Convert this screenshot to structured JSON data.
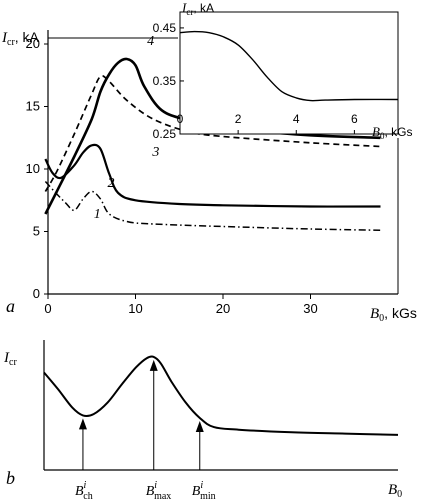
{
  "chart_data": [
    {
      "panel": "a",
      "type": "line",
      "ylabel_var": "I",
      "ylabel_sub": "cr",
      "ylabel_unit": ", kA",
      "xlabel_var": "B",
      "xlabel_sub": "0",
      "xlabel_unit": ", kGs",
      "xlim": [
        0,
        40
      ],
      "ylim": [
        0,
        20
      ],
      "xticks": [
        "0",
        "10",
        "20",
        "30"
      ],
      "yticks": [
        "0",
        "5",
        "10",
        "15",
        "20"
      ],
      "series": [
        {
          "name": "1",
          "style": "dash-dot",
          "points": [
            [
              -0.3,
              9.0
            ],
            [
              1,
              8.0
            ],
            [
              2,
              7.3
            ],
            [
              3,
              6.7
            ],
            [
              4,
              7.6
            ],
            [
              5,
              8.2
            ],
            [
              6,
              7.6
            ],
            [
              7,
              6.4
            ],
            [
              9,
              5.8
            ],
            [
              12,
              5.6
            ],
            [
              20,
              5.4
            ],
            [
              30,
              5.2
            ],
            [
              38,
              5.1
            ]
          ]
        },
        {
          "name": "2",
          "style": "solid",
          "points": [
            [
              -0.3,
              10.8
            ],
            [
              0.5,
              9.7
            ],
            [
              1.5,
              9.3
            ],
            [
              3,
              10.3
            ],
            [
              4,
              11.3
            ],
            [
              5,
              11.9
            ],
            [
              6,
              11.6
            ],
            [
              7,
              9.6
            ],
            [
              8,
              8.1
            ],
            [
              10,
              7.5
            ],
            [
              15,
              7.2
            ],
            [
              20,
              7.1
            ],
            [
              30,
              7.0
            ],
            [
              38,
              7.0
            ]
          ]
        },
        {
          "name": "3",
          "style": "dashed",
          "points": [
            [
              -0.3,
              8.2
            ],
            [
              1,
              9.8
            ],
            [
              3,
              12.8
            ],
            [
              5,
              16.0
            ],
            [
              6,
              17.4
            ],
            [
              7,
              17.0
            ],
            [
              9,
              15.5
            ],
            [
              12,
              14.0
            ],
            [
              16,
              13.0
            ],
            [
              20,
              12.6
            ],
            [
              30,
              12.1
            ],
            [
              38,
              11.8
            ]
          ]
        },
        {
          "name": "4",
          "style": "solid-bold",
          "points": [
            [
              -0.3,
              6.4
            ],
            [
              1,
              8.2
            ],
            [
              3,
              11.0
            ],
            [
              5,
              14.0
            ],
            [
              6,
              16.2
            ],
            [
              7,
              17.6
            ],
            [
              8,
              18.5
            ],
            [
              9,
              18.8
            ],
            [
              10,
              18.3
            ],
            [
              11,
              16.6
            ],
            [
              13,
              14.7
            ],
            [
              16,
              13.9
            ],
            [
              20,
              13.3
            ],
            [
              30,
              12.7
            ],
            [
              38,
              12.5
            ]
          ]
        }
      ]
    },
    {
      "panel": "inset",
      "type": "line",
      "ylabel_var": "I",
      "ylabel_sub": "cr",
      "ylabel_unit": ", kA",
      "xlabel_var": "B",
      "xlabel_sub": "0",
      "xlabel_unit": ", kGs",
      "xlim": [
        0,
        7.5
      ],
      "ylim": [
        0.25,
        0.48
      ],
      "xticks": [
        "0",
        "2",
        "4",
        "6"
      ],
      "yticks": [
        "0.45",
        "0.35",
        "0.25"
      ],
      "series": [
        {
          "points": [
            [
              0,
              0.441
            ],
            [
              0.5,
              0.443
            ],
            [
              1,
              0.441
            ],
            [
              1.5,
              0.433
            ],
            [
              2,
              0.418
            ],
            [
              2.5,
              0.39
            ],
            [
              3,
              0.357
            ],
            [
              3.5,
              0.33
            ],
            [
              4,
              0.318
            ],
            [
              4.5,
              0.313
            ],
            [
              5,
              0.314
            ],
            [
              6,
              0.315
            ],
            [
              7.5,
              0.315
            ]
          ]
        }
      ]
    },
    {
      "panel": "b",
      "type": "line",
      "ylabel_var": "I",
      "ylabel_sub": "cr",
      "xlabel_var": "B",
      "xlabel_sub": "0",
      "xlim": [
        0,
        100
      ],
      "ylim": [
        0,
        100
      ],
      "series": [
        {
          "points": [
            [
              0,
              75
            ],
            [
              4,
              62
            ],
            [
              8,
              48
            ],
            [
              11,
              42
            ],
            [
              14,
              43
            ],
            [
              18,
              52
            ],
            [
              22,
              66
            ],
            [
              26,
              79
            ],
            [
              29,
              86
            ],
            [
              31,
              87
            ],
            [
              33,
              82
            ],
            [
              36,
              68
            ],
            [
              40,
              52
            ],
            [
              44,
              40
            ],
            [
              48,
              33
            ],
            [
              55,
              31
            ],
            [
              70,
              29
            ],
            [
              85,
              28
            ],
            [
              100,
              27
            ]
          ]
        }
      ],
      "annotations": [
        {
          "label_var": "B",
          "label_sup": "i",
          "label_sub": "ch",
          "x": 11
        },
        {
          "label_var": "B",
          "label_sup": "i",
          "label_sub": "max",
          "x": 31
        },
        {
          "label_var": "B",
          "label_sup": "i",
          "label_sub": "min",
          "x": 44
        }
      ]
    }
  ],
  "panel_labels": {
    "a": "a",
    "b": "b"
  }
}
